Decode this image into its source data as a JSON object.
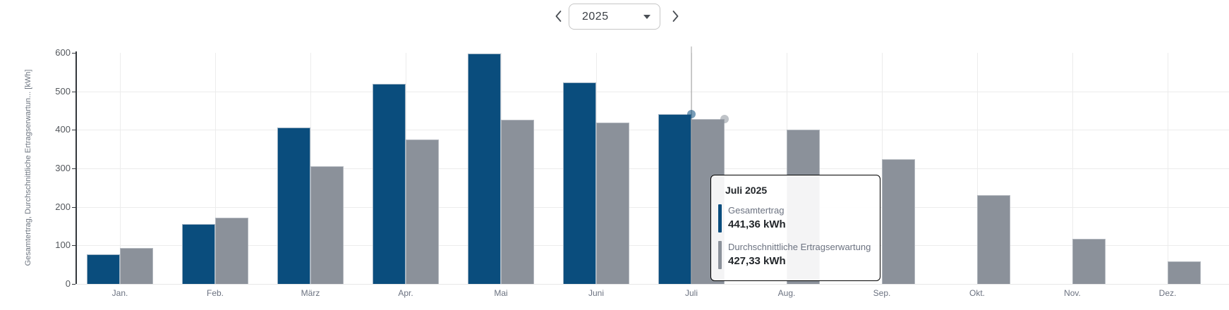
{
  "header": {
    "year_value": "2025",
    "prev_icon": "chevron-left",
    "next_icon": "chevron-right",
    "caret_icon": "caret-down"
  },
  "chart_data": {
    "type": "bar",
    "categories": [
      "Jan.",
      "Feb.",
      "März",
      "Apr.",
      "Mai",
      "Juni",
      "Juli",
      "Aug.",
      "Sep.",
      "Okt.",
      "Nov.",
      "Dez."
    ],
    "series": [
      {
        "name": "Gesamtertrag",
        "color": "#0a4d7d",
        "values": [
          77,
          156,
          406,
          519,
          598,
          524,
          441.36,
          null,
          null,
          null,
          null,
          null
        ]
      },
      {
        "name": "Durchschnittliche Ertragserwartung",
        "color": "#8b919a",
        "values": [
          94,
          172,
          306,
          375,
          426,
          419,
          427.33,
          401,
          324,
          230,
          117,
          59
        ]
      }
    ],
    "ylabel": "Gesamtertrag, Durchschnittliche Ertragserwartun... [kWh]",
    "yticks": [
      0,
      100,
      200,
      300,
      400,
      500,
      600
    ],
    "ylim": [
      0,
      600
    ],
    "grid": true,
    "legend_position": "none",
    "hover_month_index": 6
  },
  "tooltip": {
    "title": "Juli 2025",
    "rows": [
      {
        "label": "Gesamtertrag",
        "value": "441,36 kWh",
        "color": "#0a4d7d"
      },
      {
        "label": "Durchschnittliche Ertragserwartung",
        "value": "427,33 kWh",
        "color": "#8b919a"
      }
    ]
  }
}
